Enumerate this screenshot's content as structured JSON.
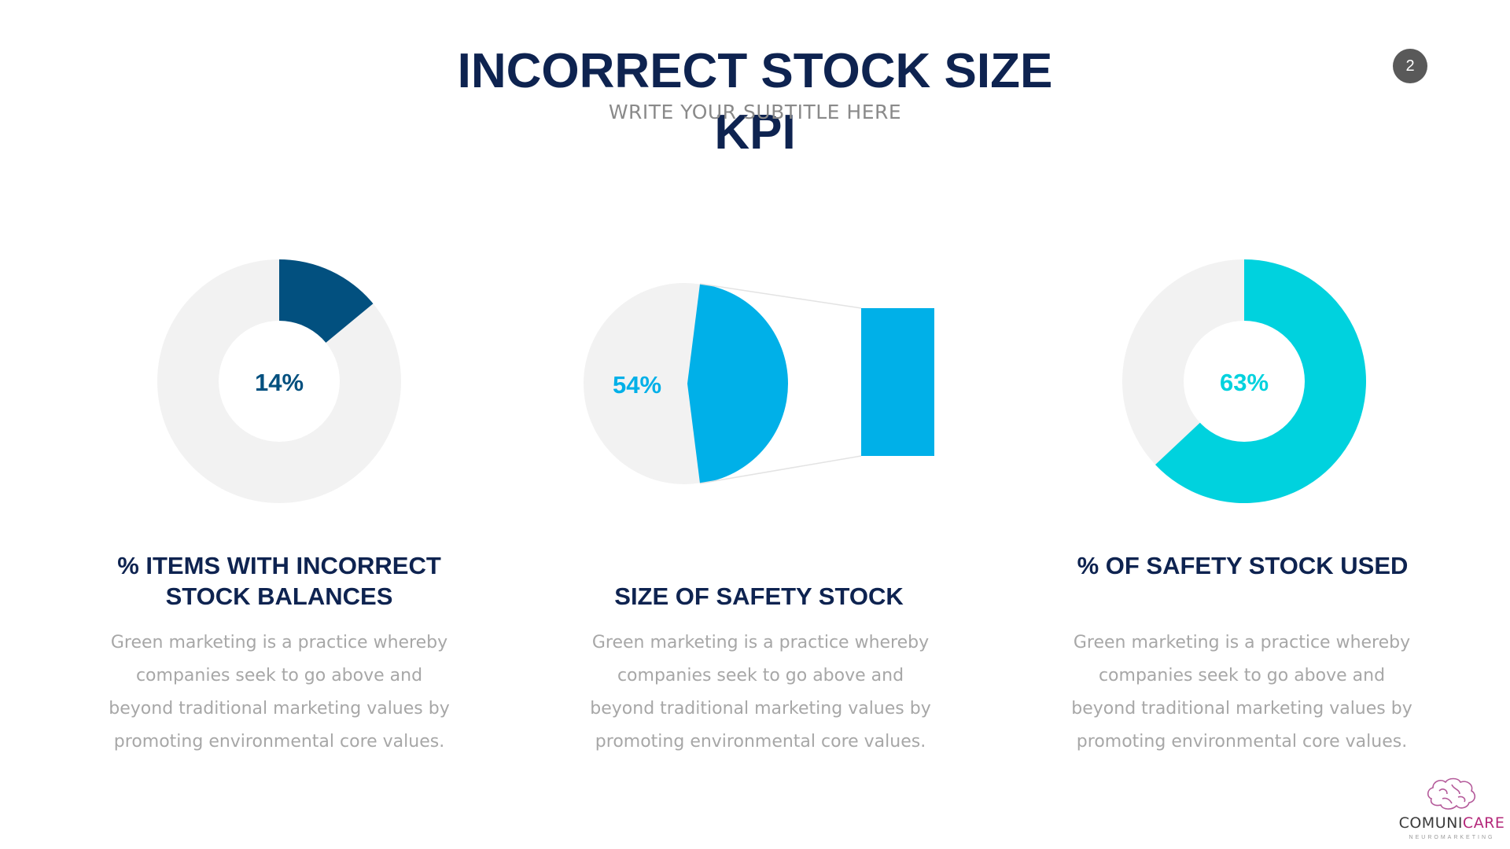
{
  "page": {
    "title": "INCORRECT STOCK SIZE KPI",
    "subtitle": "WRITE YOUR SUBTITLE HERE",
    "page_number": "2"
  },
  "logo": {
    "name_part1": "COMUNI",
    "name_part2": "CARE",
    "tagline": "NEUROMARKETING",
    "icon": "brain-icon"
  },
  "colors": {
    "title": "#0e2350",
    "track": "#f2f2f2",
    "navy": "#02507f",
    "blue": "#00b0e8",
    "cyan": "#00d2de",
    "body_text": "#a7a7a7"
  },
  "chart_data": [
    {
      "type": "pie",
      "style": "donut",
      "value_percent": 14,
      "label": "14%",
      "color": "#02507f",
      "track_color": "#f2f2f2",
      "title": "% ITEMS WITH INCORRECT STOCK BALANCES",
      "description": "Green marketing is a practice whereby companies seek to go above and beyond traditional marketing values by promoting environmental core values."
    },
    {
      "type": "pie",
      "style": "pie-of-bar",
      "value_percent": 54,
      "label": "54%",
      "color": "#00b0e8",
      "track_color": "#f2f2f2",
      "title": "SIZE OF SAFETY STOCK",
      "description": "Green marketing is a practice whereby companies seek to go above and beyond traditional marketing values by promoting environmental core values."
    },
    {
      "type": "pie",
      "style": "donut",
      "value_percent": 63,
      "label": "63%",
      "color": "#00d2de",
      "track_color": "#f2f2f2",
      "title": "% OF SAFETY STOCK USED",
      "description": "Green marketing is a practice whereby companies seek to go above and beyond traditional marketing values by promoting environmental core values."
    }
  ]
}
